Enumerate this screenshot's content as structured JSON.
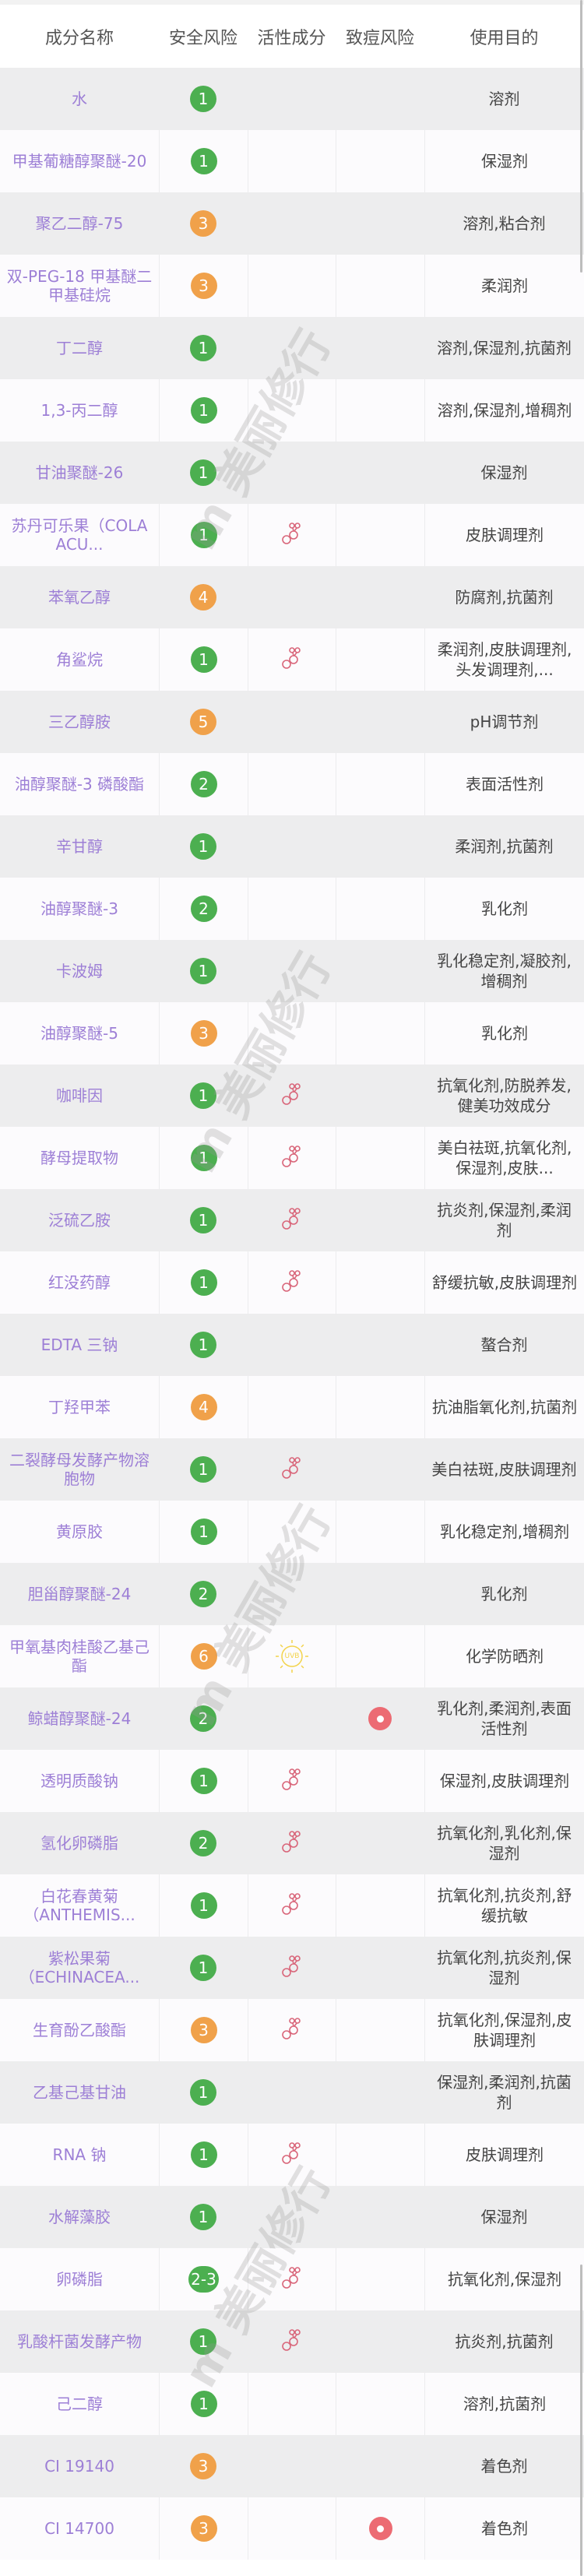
{
  "header": {
    "columns": [
      "成分名称",
      "安全风险",
      "活性成分",
      "致痘风险",
      "使用目的"
    ]
  },
  "colors": {
    "safe": "#4caf50",
    "warn": "#f0a14a",
    "acne": "#ec6b73",
    "active": "#d9667a",
    "uvb": "#f3d34a",
    "name": "#9d7fd6"
  },
  "watermark": "m 美丽修行",
  "ingredients": [
    {
      "name": "水",
      "risk": "1",
      "level": "safe",
      "active": "",
      "acne": false,
      "usage": "溶剂"
    },
    {
      "name": "甲基葡糖醇聚醚-20",
      "risk": "1",
      "level": "safe",
      "active": "",
      "acne": false,
      "usage": "保湿剂"
    },
    {
      "name": "聚乙二醇-75",
      "risk": "3",
      "level": "warn",
      "active": "",
      "acne": false,
      "usage": "溶剂,粘合剂"
    },
    {
      "name": "双-PEG-18 甲基醚二甲基硅烷",
      "risk": "3",
      "level": "warn",
      "active": "",
      "acne": false,
      "usage": "柔润剂"
    },
    {
      "name": "丁二醇",
      "risk": "1",
      "level": "safe",
      "active": "",
      "acne": false,
      "usage": "溶剂,保湿剂,抗菌剂"
    },
    {
      "name": "1,3-丙二醇",
      "risk": "1",
      "level": "safe",
      "active": "",
      "acne": false,
      "usage": "溶剂,保湿剂,增稠剂"
    },
    {
      "name": "甘油聚醚-26",
      "risk": "1",
      "level": "safe",
      "active": "",
      "acne": false,
      "usage": "保湿剂"
    },
    {
      "name": "苏丹可乐果（COLA ACU...",
      "risk": "1",
      "level": "safe",
      "active": "molecule",
      "acne": false,
      "usage": "皮肤调理剂"
    },
    {
      "name": "苯氧乙醇",
      "risk": "4",
      "level": "warn",
      "active": "",
      "acne": false,
      "usage": "防腐剂,抗菌剂"
    },
    {
      "name": "角鲨烷",
      "risk": "1",
      "level": "safe",
      "active": "molecule",
      "acne": false,
      "usage": "柔润剂,皮肤调理剂,头发调理剂,..."
    },
    {
      "name": "三乙醇胺",
      "risk": "5",
      "level": "warn",
      "active": "",
      "acne": false,
      "usage": "pH调节剂"
    },
    {
      "name": "油醇聚醚-3 磷酸酯",
      "risk": "2",
      "level": "safe",
      "active": "",
      "acne": false,
      "usage": "表面活性剂"
    },
    {
      "name": "辛甘醇",
      "risk": "1",
      "level": "safe",
      "active": "",
      "acne": false,
      "usage": "柔润剂,抗菌剂"
    },
    {
      "name": "油醇聚醚-3",
      "risk": "2",
      "level": "safe",
      "active": "",
      "acne": false,
      "usage": "乳化剂"
    },
    {
      "name": "卡波姆",
      "risk": "1",
      "level": "safe",
      "active": "",
      "acne": false,
      "usage": "乳化稳定剂,凝胶剂,增稠剂"
    },
    {
      "name": "油醇聚醚-5",
      "risk": "3",
      "level": "warn",
      "active": "",
      "acne": false,
      "usage": "乳化剂"
    },
    {
      "name": "咖啡因",
      "risk": "1",
      "level": "safe",
      "active": "molecule",
      "acne": false,
      "usage": "抗氧化剂,防脱养发,健美功效成分"
    },
    {
      "name": "酵母提取物",
      "risk": "1",
      "level": "safe",
      "active": "molecule",
      "acne": false,
      "usage": "美白祛斑,抗氧化剂,保湿剂,皮肤..."
    },
    {
      "name": "泛硫乙胺",
      "risk": "1",
      "level": "safe",
      "active": "molecule",
      "acne": false,
      "usage": "抗炎剂,保湿剂,柔润剂"
    },
    {
      "name": "红没药醇",
      "risk": "1",
      "level": "safe",
      "active": "molecule",
      "acne": false,
      "usage": "舒缓抗敏,皮肤调理剂"
    },
    {
      "name": "EDTA 三钠",
      "risk": "1",
      "level": "safe",
      "active": "",
      "acne": false,
      "usage": "螯合剂"
    },
    {
      "name": "丁羟甲苯",
      "risk": "4",
      "level": "warn",
      "active": "",
      "acne": false,
      "usage": "抗油脂氧化剂,抗菌剂"
    },
    {
      "name": "二裂酵母发酵产物溶胞物",
      "risk": "1",
      "level": "safe",
      "active": "molecule",
      "acne": false,
      "usage": "美白祛斑,皮肤调理剂"
    },
    {
      "name": "黄原胶",
      "risk": "1",
      "level": "safe",
      "active": "",
      "acne": false,
      "usage": "乳化稳定剂,增稠剂"
    },
    {
      "name": "胆甾醇聚醚-24",
      "risk": "2",
      "level": "safe",
      "active": "",
      "acne": false,
      "usage": "乳化剂"
    },
    {
      "name": "甲氧基肉桂酸乙基己酯",
      "risk": "6",
      "level": "warn",
      "active": "uvb",
      "active_label": "UVB",
      "acne": false,
      "usage": "化学防晒剂"
    },
    {
      "name": "鲸蜡醇聚醚-24",
      "risk": "2",
      "level": "safe",
      "active": "",
      "acne": true,
      "usage": "乳化剂,柔润剂,表面活性剂"
    },
    {
      "name": "透明质酸钠",
      "risk": "1",
      "level": "safe",
      "active": "molecule",
      "acne": false,
      "usage": "保湿剂,皮肤调理剂"
    },
    {
      "name": "氢化卵磷脂",
      "risk": "2",
      "level": "safe",
      "active": "molecule",
      "acne": false,
      "usage": "抗氧化剂,乳化剂,保湿剂"
    },
    {
      "name": "白花春黄菊（ANTHEMIS...",
      "risk": "1",
      "level": "safe",
      "active": "molecule",
      "acne": false,
      "usage": "抗氧化剂,抗炎剂,舒缓抗敏"
    },
    {
      "name": "紫松果菊（ECHINACEA...",
      "risk": "1",
      "level": "safe",
      "active": "molecule",
      "acne": false,
      "usage": "抗氧化剂,抗炎剂,保湿剂"
    },
    {
      "name": "生育酚乙酸酯",
      "risk": "3",
      "level": "warn",
      "active": "molecule",
      "acne": false,
      "usage": "抗氧化剂,保湿剂,皮肤调理剂"
    },
    {
      "name": "乙基己基甘油",
      "risk": "1",
      "level": "safe",
      "active": "",
      "acne": false,
      "usage": "保湿剂,柔润剂,抗菌剂"
    },
    {
      "name": "RNA 钠",
      "risk": "1",
      "level": "safe",
      "active": "molecule",
      "acne": false,
      "usage": "皮肤调理剂"
    },
    {
      "name": "水解藻胶",
      "risk": "1",
      "level": "safe",
      "active": "",
      "acne": false,
      "usage": "保湿剂"
    },
    {
      "name": "卵磷脂",
      "risk": "2-3",
      "level": "safe",
      "active": "molecule",
      "acne": false,
      "usage": "抗氧化剂,保湿剂"
    },
    {
      "name": "乳酸杆菌发酵产物",
      "risk": "1",
      "level": "safe",
      "active": "molecule",
      "acne": false,
      "usage": "抗炎剂,抗菌剂"
    },
    {
      "name": "己二醇",
      "risk": "1",
      "level": "safe",
      "active": "",
      "acne": false,
      "usage": "溶剂,抗菌剂"
    },
    {
      "name": "CI 19140",
      "risk": "3",
      "level": "warn",
      "active": "",
      "acne": false,
      "usage": "着色剂"
    },
    {
      "name": "CI 14700",
      "risk": "3",
      "level": "warn",
      "active": "",
      "acne": true,
      "usage": "着色剂"
    }
  ]
}
